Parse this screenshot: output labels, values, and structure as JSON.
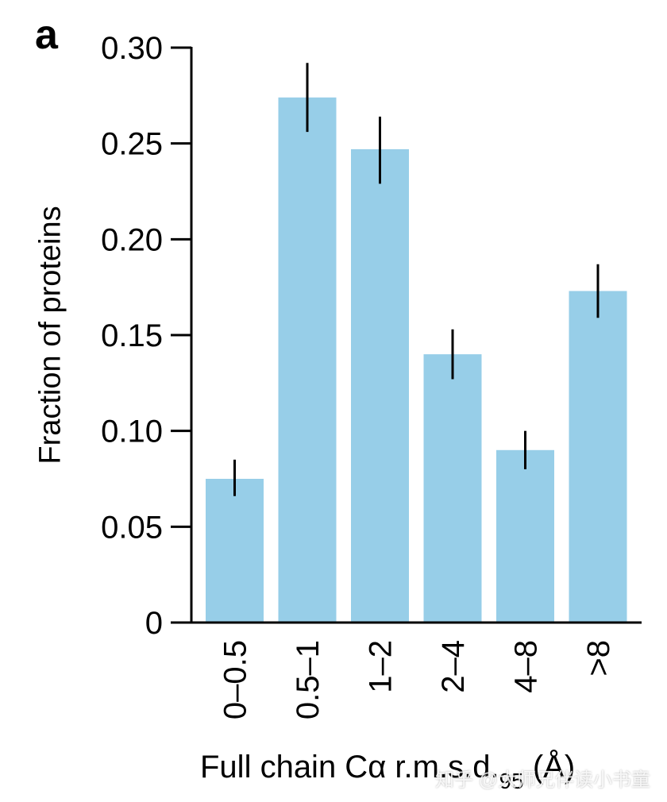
{
  "panel_label": "a",
  "watermark": "知乎 @大师兄伴读小书童",
  "colors": {
    "bar": "#97CEE8",
    "error_bar": "#000000",
    "axis": "#000000"
  },
  "chart_data": {
    "type": "bar",
    "title": "",
    "ylabel": "Fraction of proteins",
    "xlabel_main": "Full chain Cα r.m.s.d.",
    "xlabel_sub": "95",
    "xlabel_unit": "(Å)",
    "categories": [
      "0–0.5",
      "0.5–1",
      "1–2",
      "2–4",
      "4–8",
      ">8"
    ],
    "values": [
      0.075,
      0.274,
      0.247,
      0.14,
      0.09,
      0.173
    ],
    "error_low": [
      0.066,
      0.256,
      0.229,
      0.127,
      0.08,
      0.159
    ],
    "error_high": [
      0.085,
      0.292,
      0.264,
      0.153,
      0.1,
      0.187
    ],
    "ylim": [
      0,
      0.3
    ],
    "yticks": [
      0,
      0.05,
      0.1,
      0.15,
      0.2,
      0.25,
      0.3
    ],
    "ytick_labels": [
      "0",
      "0.05",
      "0.10",
      "0.15",
      "0.20",
      "0.25",
      "0.30"
    ],
    "grid": false,
    "legend": "none"
  }
}
